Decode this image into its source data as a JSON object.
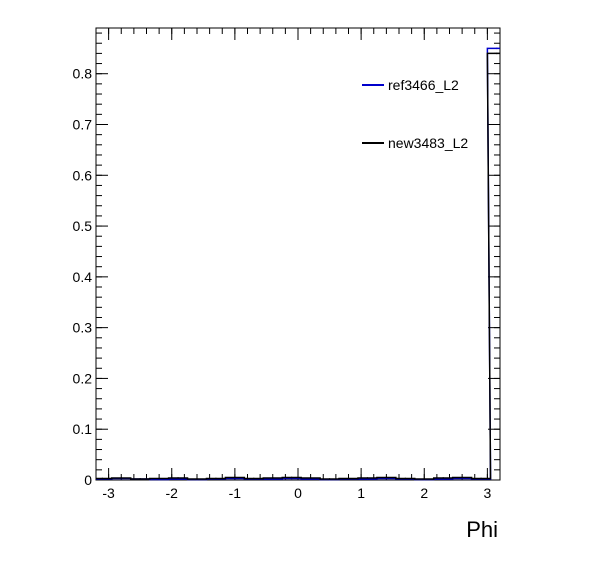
{
  "chart_data": {
    "type": "line",
    "title": "",
    "xlabel": "Phi",
    "ylabel": "",
    "xlim": [
      -3.2,
      3.2
    ],
    "ylim": [
      0,
      0.89
    ],
    "x_ticks": [
      -3,
      -2,
      -1,
      0,
      1,
      2,
      3
    ],
    "y_ticks": [
      0,
      0.1,
      0.2,
      0.3,
      0.4,
      0.5,
      0.6,
      0.7,
      0.8
    ],
    "grid": false,
    "legend_position": "top-right",
    "series": [
      {
        "name": "ref3466_L2",
        "color": "#0000cc",
        "x": [
          -3.1,
          -2.8,
          -2.5,
          -2.2,
          -1.9,
          -1.6,
          -1.3,
          -1.0,
          -0.7,
          -0.4,
          -0.1,
          0.2,
          0.5,
          0.8,
          1.1,
          1.4,
          1.7,
          2.0,
          2.3,
          2.6,
          2.9,
          3.15
        ],
        "y": [
          0.002,
          0.003,
          0.002,
          0.001,
          0.002,
          0.001,
          0.002,
          0.003,
          0.002,
          0.002,
          0.003,
          0.002,
          0.001,
          0.002,
          0.002,
          0.003,
          0.002,
          0.001,
          0.002,
          0.003,
          0.002,
          0.85
        ]
      },
      {
        "name": "new3483_L2",
        "color": "#000000",
        "x": [
          -3.1,
          -2.8,
          -2.5,
          -2.2,
          -1.9,
          -1.6,
          -1.3,
          -1.0,
          -0.7,
          -0.4,
          -0.1,
          0.2,
          0.5,
          0.8,
          1.1,
          1.4,
          1.7,
          2.0,
          2.3,
          2.6,
          2.9,
          3.15
        ],
        "y": [
          0.003,
          0.004,
          0.002,
          0.003,
          0.004,
          0.002,
          0.003,
          0.005,
          0.003,
          0.004,
          0.005,
          0.004,
          0.002,
          0.003,
          0.004,
          0.005,
          0.003,
          0.002,
          0.004,
          0.005,
          0.003,
          0.84
        ]
      }
    ]
  }
}
